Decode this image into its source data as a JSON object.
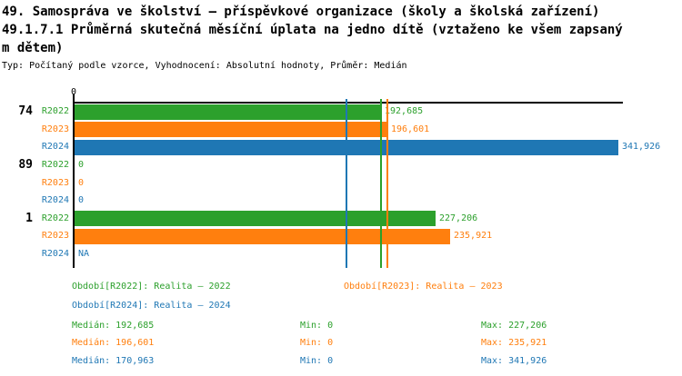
{
  "header": {
    "title": "49. Samospráva ve školství – příspěvkové organizace (školy a školská zařízení)",
    "subtitle": "49.1.7.1 Průměrná skutečná měsíční úplata na jedno dítě (vztaženo ke všem zapsaným dětem)",
    "meta": "Typ: Počítaný podle vzorce, Vyhodnocení: Absolutní hodnoty, Průměr: Medián"
  },
  "colors": {
    "r2022": "#2ca02c",
    "r2023": "#ff7f0e",
    "r2024": "#1f77b4",
    "axis": "#000000"
  },
  "chart_data": {
    "type": "bar",
    "orientation": "horizontal",
    "title": "49.1.7.1 Průměrná skutečná měsíční úplata na jedno dítě (vztaženo ke všem zapsaným dětem)",
    "axis_zero_label": "0",
    "value_axis_max": 341926,
    "grid": false,
    "groups": [
      {
        "label": "74",
        "rows": [
          {
            "series": "R2022",
            "value": 192685,
            "display": "192,685"
          },
          {
            "series": "R2023",
            "value": 196601,
            "display": "196,601"
          },
          {
            "series": "R2024",
            "value": 341926,
            "display": "341,926"
          }
        ]
      },
      {
        "label": "89",
        "rows": [
          {
            "series": "R2022",
            "value": 0,
            "display": "0"
          },
          {
            "series": "R2023",
            "value": 0,
            "display": "0"
          },
          {
            "series": "R2024",
            "value": 0,
            "display": "0"
          }
        ]
      },
      {
        "label": "1",
        "rows": [
          {
            "series": "R2022",
            "value": 227206,
            "display": "227,206"
          },
          {
            "series": "R2023",
            "value": 235921,
            "display": "235,921"
          },
          {
            "series": "R2024",
            "value": null,
            "display": "NA"
          }
        ]
      }
    ],
    "reference_lines": [
      {
        "series": "R2022",
        "stat": "median",
        "value": 192685
      },
      {
        "series": "R2023",
        "stat": "median",
        "value": 196601
      },
      {
        "series": "R2024",
        "stat": "median",
        "value": 170963
      }
    ],
    "stats": [
      {
        "series": "R2022",
        "median": 192685,
        "min": 0,
        "max": 227206
      },
      {
        "series": "R2023",
        "median": 196601,
        "min": 0,
        "max": 235921
      },
      {
        "series": "R2024",
        "median": 170963,
        "min": 0,
        "max": 341926
      }
    ]
  },
  "legend": {
    "periods": [
      {
        "series": "R2022",
        "text": "Období[R2022]: Realita – 2022"
      },
      {
        "series": "R2023",
        "text": "Období[R2023]: Realita – 2023"
      },
      {
        "series": "R2024",
        "text": "Období[R2024]: Realita – 2024"
      }
    ],
    "stats": [
      {
        "series": "R2022",
        "median": "Medián: 192,685",
        "min": "Min: 0",
        "max": "Max: 227,206"
      },
      {
        "series": "R2023",
        "median": "Medián: 196,601",
        "min": "Min: 0",
        "max": "Max: 235,921"
      },
      {
        "series": "R2024",
        "median": "Medián: 170,963",
        "min": "Min: 0",
        "max": "Max: 341,926"
      }
    ]
  }
}
